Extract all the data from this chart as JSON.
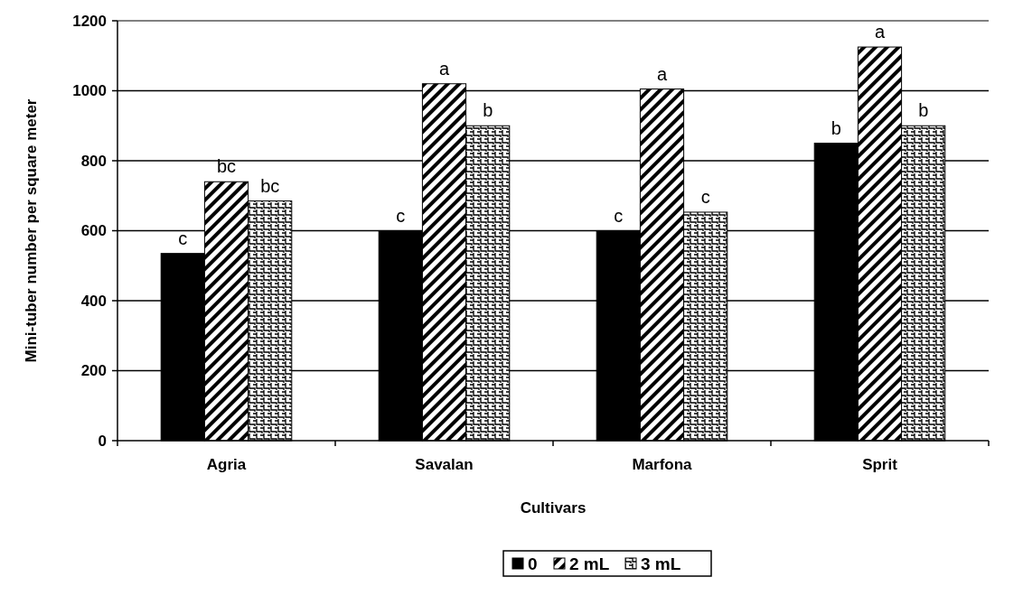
{
  "chart_data": {
    "type": "bar",
    "xlabel": "Cultivars",
    "ylabel": "Mini-tuber number per square meter",
    "categories": [
      "Agria",
      "Savalan",
      "Marfona",
      "Sprit"
    ],
    "series": [
      {
        "name": "0",
        "color": "#000000",
        "values": [
          535,
          600,
          600,
          850
        ],
        "value_labels": [
          "c",
          "c",
          "c",
          "b"
        ]
      },
      {
        "name": "2 mL",
        "color": "#000000",
        "values": [
          740,
          1020,
          1005,
          1125
        ],
        "value_labels": [
          "bc",
          "a",
          "a",
          "a"
        ]
      },
      {
        "name": "3 mL",
        "color": "#000000",
        "values": [
          685,
          900,
          653,
          900
        ],
        "value_labels": [
          "bc",
          "b",
          "c",
          "b"
        ]
      }
    ],
    "ylim": [
      0,
      1200
    ],
    "yticks": [
      0,
      200,
      400,
      600,
      800,
      1000,
      1200
    ],
    "grid": "y",
    "legend": "bottom"
  }
}
